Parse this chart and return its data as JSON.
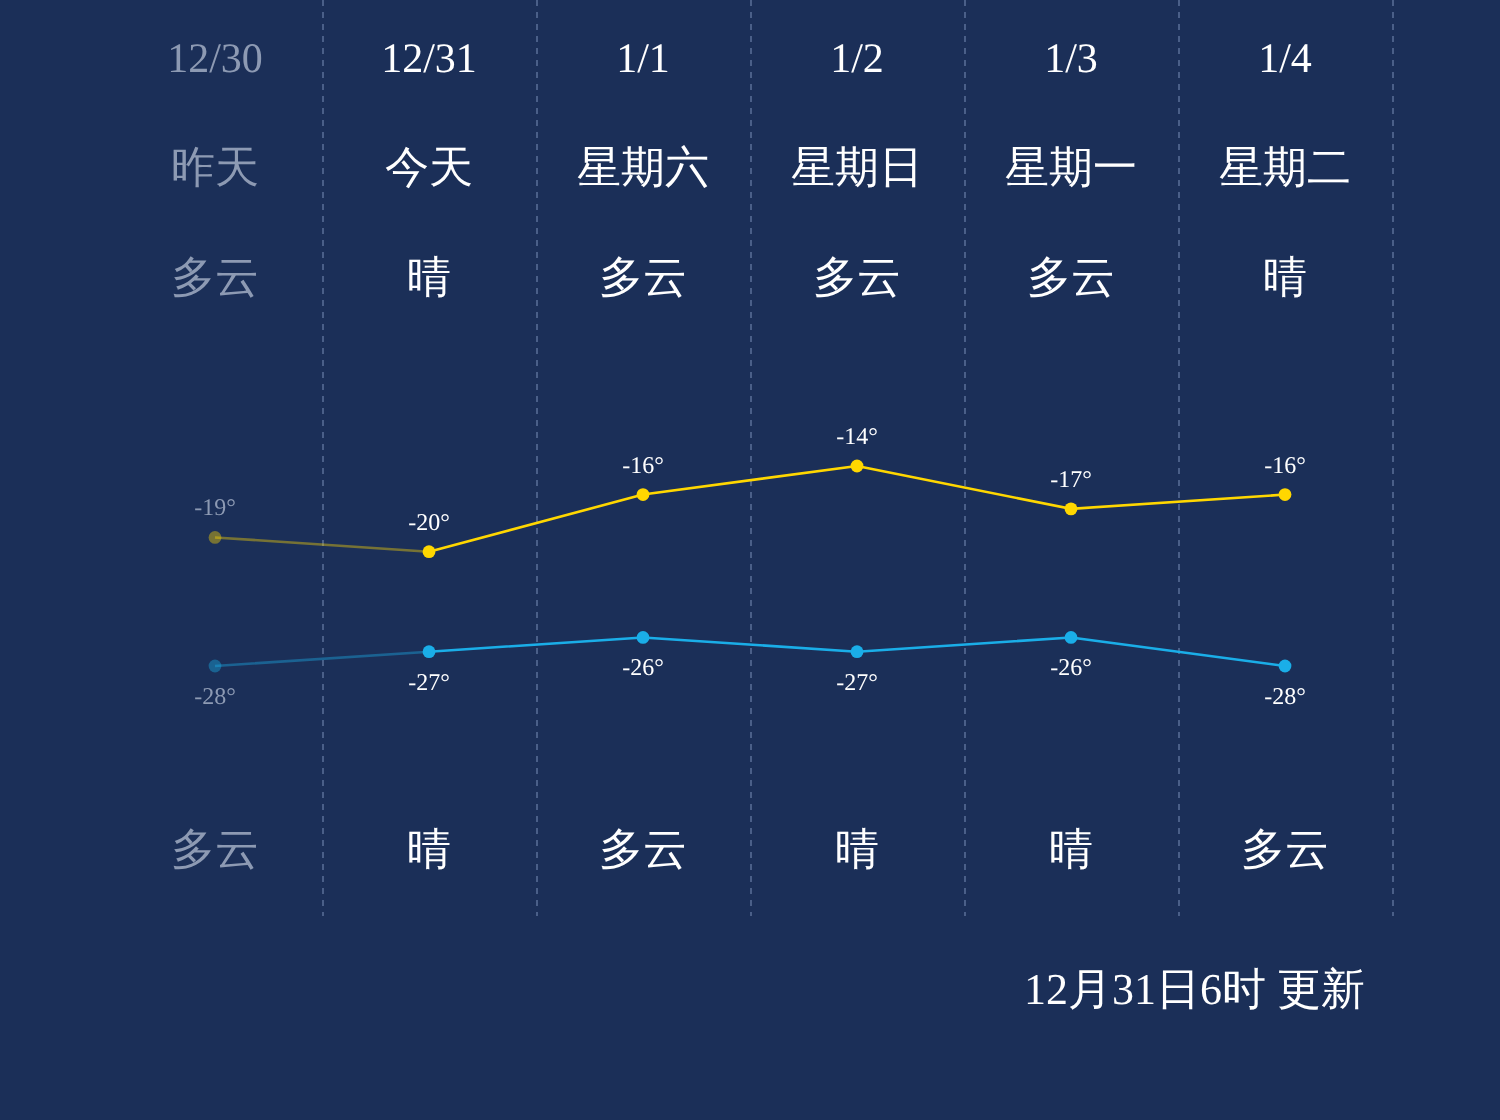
{
  "chart_data": {
    "type": "line",
    "categories": [
      "12/30",
      "12/31",
      "1/1",
      "1/2",
      "1/3",
      "1/4"
    ],
    "series": [
      {
        "color": "#ffd700",
        "values": [
          -19,
          -20,
          -16,
          -14,
          -17,
          -16
        ],
        "value_labels": [
          "-19°",
          "-20°",
          "-16°",
          "-14°",
          "-17°",
          "-16°"
        ]
      },
      {
        "color": "#1aaee8",
        "values": [
          -28,
          -27,
          -26,
          -27,
          -26,
          -28
        ],
        "value_labels": [
          "-28°",
          "-27°",
          "-26°",
          "-27°",
          "-26°",
          "-28°"
        ]
      }
    ],
    "marker": "circle",
    "annotations": [
      "昨天",
      "今天",
      "星期六",
      "星期日",
      "星期一",
      "星期二",
      "多云",
      "晴",
      "多云",
      "多云",
      "多云",
      "晴",
      "多云",
      "晴",
      "多云",
      "晴",
      "晴",
      "多云",
      "12月31日6时 更新"
    ]
  }
}
